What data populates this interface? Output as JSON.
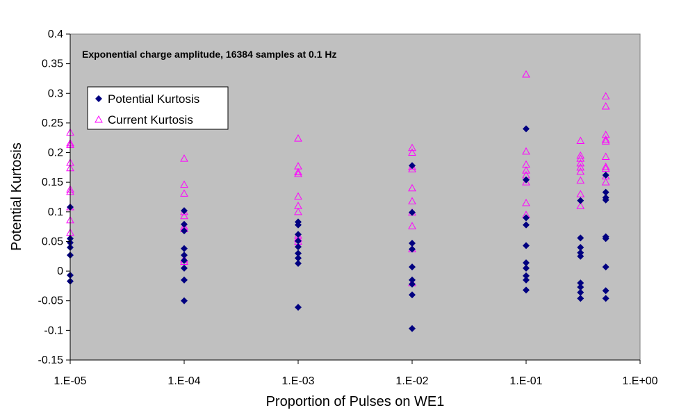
{
  "chart_data": {
    "type": "scatter",
    "title": "",
    "annotation": "Exponential charge amplitude, 16384 samples at 0.1 Hz",
    "xlabel": "Proportion of Pulses on WE1",
    "ylabel": "Potential Kurtosis",
    "x_scale": "log",
    "xlim": [
      1e-05,
      1
    ],
    "ylim": [
      -0.15,
      0.4
    ],
    "x_tick_labels": [
      "1.E-05",
      "1.E-04",
      "1.E-03",
      "1.E-02",
      "1.E-01",
      "1.E+00"
    ],
    "y_ticks": [
      -0.15,
      -0.1,
      -0.05,
      0,
      0.05,
      0.1,
      0.15,
      0.2,
      0.25,
      0.3,
      0.35,
      0.4
    ],
    "y_tick_labels": [
      "-0.15",
      "-0.1",
      "-0.05",
      "0",
      "0.05",
      "0.1",
      "0.15",
      "0.2",
      "0.25",
      "0.3",
      "0.35",
      "0.4"
    ],
    "grid": false,
    "plot_background": "#c0c0c0",
    "legend_position": "upper-left",
    "series": [
      {
        "name": "Potential Kurtosis",
        "marker": "diamond",
        "color": "#000080",
        "points": [
          {
            "x": 1e-05,
            "y": 0.108
          },
          {
            "x": 1e-05,
            "y": 0.055
          },
          {
            "x": 1e-05,
            "y": 0.048
          },
          {
            "x": 1e-05,
            "y": 0.04
          },
          {
            "x": 1e-05,
            "y": 0.027
          },
          {
            "x": 1e-05,
            "y": -0.007
          },
          {
            "x": 1e-05,
            "y": -0.017
          },
          {
            "x": 0.0001,
            "y": 0.102
          },
          {
            "x": 0.0001,
            "y": 0.079
          },
          {
            "x": 0.0001,
            "y": 0.068
          },
          {
            "x": 0.0001,
            "y": 0.038
          },
          {
            "x": 0.0001,
            "y": 0.027
          },
          {
            "x": 0.0001,
            "y": 0.018
          },
          {
            "x": 0.0001,
            "y": 0.005
          },
          {
            "x": 0.0001,
            "y": -0.015
          },
          {
            "x": 0.0001,
            "y": -0.05
          },
          {
            "x": 0.001,
            "y": 0.083
          },
          {
            "x": 0.001,
            "y": 0.078
          },
          {
            "x": 0.001,
            "y": 0.062
          },
          {
            "x": 0.001,
            "y": 0.051
          },
          {
            "x": 0.001,
            "y": 0.041
          },
          {
            "x": 0.001,
            "y": 0.03
          },
          {
            "x": 0.001,
            "y": 0.022
          },
          {
            "x": 0.001,
            "y": 0.013
          },
          {
            "x": 0.001,
            "y": -0.061
          },
          {
            "x": 0.01,
            "y": 0.178
          },
          {
            "x": 0.01,
            "y": 0.099
          },
          {
            "x": 0.01,
            "y": 0.047
          },
          {
            "x": 0.01,
            "y": 0.037
          },
          {
            "x": 0.01,
            "y": 0.007
          },
          {
            "x": 0.01,
            "y": -0.015
          },
          {
            "x": 0.01,
            "y": -0.022
          },
          {
            "x": 0.01,
            "y": -0.04
          },
          {
            "x": 0.01,
            "y": -0.097
          },
          {
            "x": 0.1,
            "y": 0.24
          },
          {
            "x": 0.1,
            "y": 0.154
          },
          {
            "x": 0.1,
            "y": 0.09
          },
          {
            "x": 0.1,
            "y": 0.078
          },
          {
            "x": 0.1,
            "y": 0.043
          },
          {
            "x": 0.1,
            "y": 0.014
          },
          {
            "x": 0.1,
            "y": 0.005
          },
          {
            "x": 0.1,
            "y": -0.008
          },
          {
            "x": 0.1,
            "y": -0.015
          },
          {
            "x": 0.1,
            "y": -0.032
          },
          {
            "x": 0.3,
            "y": 0.119
          },
          {
            "x": 0.3,
            "y": 0.056
          },
          {
            "x": 0.3,
            "y": 0.04
          },
          {
            "x": 0.3,
            "y": 0.031
          },
          {
            "x": 0.3,
            "y": 0.025
          },
          {
            "x": 0.3,
            "y": -0.02
          },
          {
            "x": 0.3,
            "y": -0.027
          },
          {
            "x": 0.3,
            "y": -0.036
          },
          {
            "x": 0.3,
            "y": -0.046
          },
          {
            "x": 0.5,
            "y": 0.162
          },
          {
            "x": 0.5,
            "y": 0.133
          },
          {
            "x": 0.5,
            "y": 0.124
          },
          {
            "x": 0.5,
            "y": 0.12
          },
          {
            "x": 0.5,
            "y": 0.058
          },
          {
            "x": 0.5,
            "y": 0.055
          },
          {
            "x": 0.5,
            "y": 0.007
          },
          {
            "x": 0.5,
            "y": -0.033
          },
          {
            "x": 0.5,
            "y": -0.046
          }
        ]
      },
      {
        "name": "Current Kurtosis",
        "marker": "triangle",
        "color": "#ff00ff",
        "points": [
          {
            "x": 1e-05,
            "y": 0.234
          },
          {
            "x": 1e-05,
            "y": 0.216
          },
          {
            "x": 1e-05,
            "y": 0.213
          },
          {
            "x": 1e-05,
            "y": 0.183
          },
          {
            "x": 1e-05,
            "y": 0.174
          },
          {
            "x": 1e-05,
            "y": 0.138
          },
          {
            "x": 1e-05,
            "y": 0.134
          },
          {
            "x": 1e-05,
            "y": 0.108
          },
          {
            "x": 1e-05,
            "y": 0.086
          },
          {
            "x": 1e-05,
            "y": 0.065
          },
          {
            "x": 0.0001,
            "y": 0.19
          },
          {
            "x": 0.0001,
            "y": 0.146
          },
          {
            "x": 0.0001,
            "y": 0.131
          },
          {
            "x": 0.0001,
            "y": 0.1
          },
          {
            "x": 0.0001,
            "y": 0.093
          },
          {
            "x": 0.0001,
            "y": 0.075
          },
          {
            "x": 0.0001,
            "y": 0.071
          },
          {
            "x": 0.0001,
            "y": 0.02
          },
          {
            "x": 0.0001,
            "y": 0.016
          },
          {
            "x": 0.001,
            "y": 0.224
          },
          {
            "x": 0.001,
            "y": 0.177
          },
          {
            "x": 0.001,
            "y": 0.167
          },
          {
            "x": 0.001,
            "y": 0.164
          },
          {
            "x": 0.001,
            "y": 0.126
          },
          {
            "x": 0.001,
            "y": 0.11
          },
          {
            "x": 0.001,
            "y": 0.1
          },
          {
            "x": 0.001,
            "y": 0.06
          },
          {
            "x": 0.001,
            "y": 0.055
          },
          {
            "x": 0.001,
            "y": 0.05
          },
          {
            "x": 0.01,
            "y": 0.208
          },
          {
            "x": 0.01,
            "y": 0.2
          },
          {
            "x": 0.01,
            "y": 0.176
          },
          {
            "x": 0.01,
            "y": 0.172
          },
          {
            "x": 0.01,
            "y": 0.14
          },
          {
            "x": 0.01,
            "y": 0.118
          },
          {
            "x": 0.01,
            "y": 0.099
          },
          {
            "x": 0.01,
            "y": 0.076
          },
          {
            "x": 0.01,
            "y": 0.037
          },
          {
            "x": 0.01,
            "y": -0.02
          },
          {
            "x": 0.1,
            "y": 0.332
          },
          {
            "x": 0.1,
            "y": 0.202
          },
          {
            "x": 0.1,
            "y": 0.18
          },
          {
            "x": 0.1,
            "y": 0.17
          },
          {
            "x": 0.1,
            "y": 0.162
          },
          {
            "x": 0.1,
            "y": 0.15
          },
          {
            "x": 0.1,
            "y": 0.115
          },
          {
            "x": 0.1,
            "y": 0.095
          },
          {
            "x": 0.3,
            "y": 0.22
          },
          {
            "x": 0.3,
            "y": 0.195
          },
          {
            "x": 0.3,
            "y": 0.19
          },
          {
            "x": 0.3,
            "y": 0.182
          },
          {
            "x": 0.3,
            "y": 0.175
          },
          {
            "x": 0.3,
            "y": 0.168
          },
          {
            "x": 0.3,
            "y": 0.153
          },
          {
            "x": 0.3,
            "y": 0.13
          },
          {
            "x": 0.3,
            "y": 0.11
          },
          {
            "x": 0.5,
            "y": 0.295
          },
          {
            "x": 0.5,
            "y": 0.278
          },
          {
            "x": 0.5,
            "y": 0.23
          },
          {
            "x": 0.5,
            "y": 0.222
          },
          {
            "x": 0.5,
            "y": 0.219
          },
          {
            "x": 0.5,
            "y": 0.193
          },
          {
            "x": 0.5,
            "y": 0.176
          },
          {
            "x": 0.5,
            "y": 0.173
          },
          {
            "x": 0.5,
            "y": 0.16
          },
          {
            "x": 0.5,
            "y": 0.15
          }
        ]
      }
    ]
  }
}
